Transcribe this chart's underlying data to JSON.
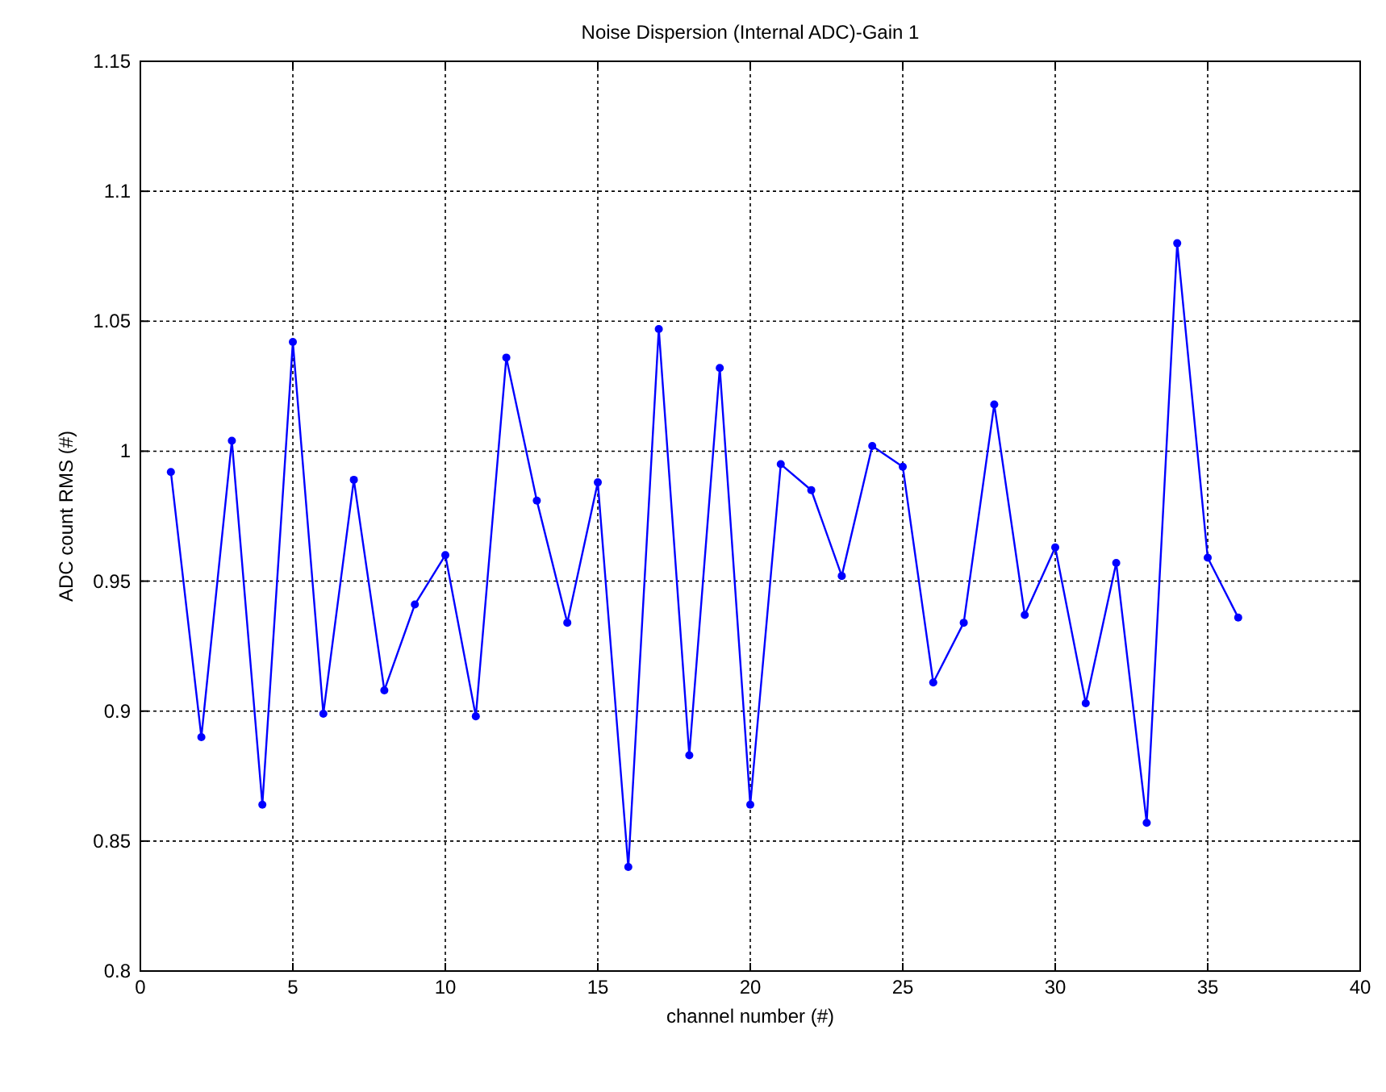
{
  "chart_data": {
    "type": "line",
    "title": "Noise Dispersion (Internal ADC)-Gain 1",
    "xlabel": "channel number (#)",
    "ylabel": "ADC count RMS (#)",
    "x": [
      1,
      2,
      3,
      4,
      5,
      6,
      7,
      8,
      9,
      10,
      11,
      12,
      13,
      14,
      15,
      16,
      17,
      18,
      19,
      20,
      21,
      22,
      23,
      24,
      25,
      26,
      27,
      28,
      29,
      30,
      31,
      32,
      33,
      34,
      35,
      36
    ],
    "series": [
      {
        "color": "#0000ff",
        "values": [
          0.992,
          0.89,
          1.004,
          0.864,
          1.042,
          0.899,
          0.989,
          0.908,
          0.941,
          0.96,
          0.898,
          1.036,
          0.981,
          0.934,
          0.988,
          0.84,
          1.047,
          0.883,
          1.032,
          0.864,
          0.995,
          0.985,
          0.952,
          1.002,
          0.994,
          0.911,
          0.934,
          1.018,
          0.937,
          0.963,
          0.903,
          0.957,
          0.857,
          1.08,
          0.959,
          0.936
        ]
      }
    ],
    "xlim": [
      0,
      40
    ],
    "xticks": [
      0,
      5,
      10,
      15,
      20,
      25,
      30,
      35,
      40
    ],
    "ylim": [
      0.8,
      1.15
    ],
    "yticks": [
      0.8,
      0.85,
      0.9,
      0.95,
      1,
      1.05,
      1.1,
      1.15
    ],
    "grid": true,
    "marker": "circle",
    "line_style": "solid"
  }
}
